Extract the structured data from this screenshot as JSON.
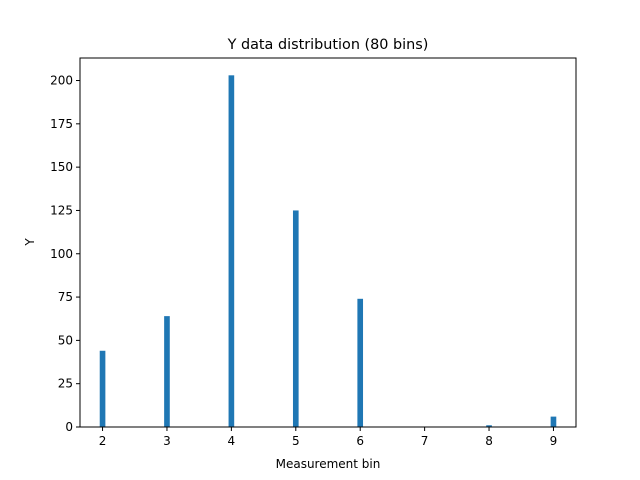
{
  "chart_data": {
    "type": "bar",
    "title": "Y data distribution (80 bins)",
    "xlabel": "Measurement bin",
    "ylabel": "Y",
    "xlim": [
      1.65,
      9.35
    ],
    "ylim": [
      0,
      213
    ],
    "x_ticks": [
      2,
      3,
      4,
      5,
      6,
      7,
      8,
      9
    ],
    "y_ticks": [
      0,
      25,
      50,
      75,
      100,
      125,
      150,
      175,
      200
    ],
    "bin_width": 0.0875,
    "bars": [
      {
        "x": 2,
        "value": 44
      },
      {
        "x": 3,
        "value": 64
      },
      {
        "x": 4,
        "value": 203
      },
      {
        "x": 5,
        "value": 125
      },
      {
        "x": 6,
        "value": 74
      },
      {
        "x": 8,
        "value": 1
      },
      {
        "x": 9,
        "value": 6
      }
    ],
    "bar_color": "#1f77b4",
    "grid": false,
    "legend": "none"
  }
}
